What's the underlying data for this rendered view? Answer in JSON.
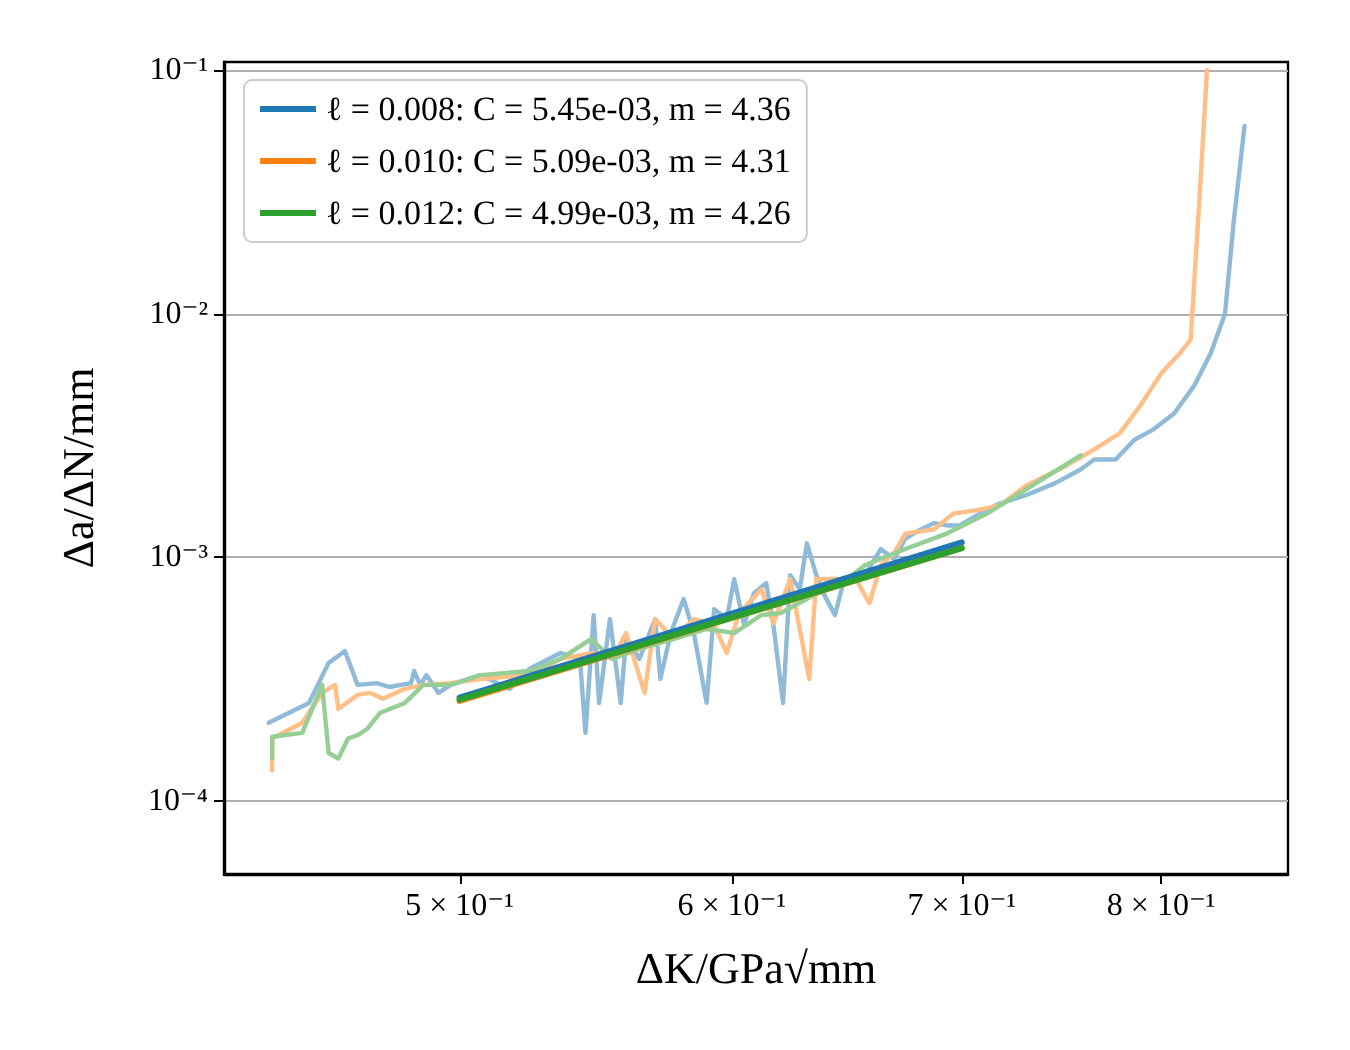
{
  "chart_data": {
    "type": "line",
    "xlabel": "ΔK/GPa√mm",
    "ylabel": "Δa/ΔN/mm",
    "log": "xy",
    "grid": "y",
    "legend": "top left",
    "marker": "none",
    "line_style": "solid",
    "xlim": [
      0.427,
      0.871
    ],
    "ylim": [
      5e-05,
      0.108
    ],
    "xticks": [
      {
        "value": 0.5,
        "label": "5 × 10⁻¹"
      },
      {
        "value": 0.6,
        "label": "6 × 10⁻¹"
      },
      {
        "value": 0.7,
        "label": "7 × 10⁻¹"
      },
      {
        "value": 0.8,
        "label": "8 × 10⁻¹"
      }
    ],
    "yticks": [
      {
        "value": 0.0001,
        "label": "10⁻⁴"
      },
      {
        "value": 0.001,
        "label": "10⁻³"
      },
      {
        "value": 0.01,
        "label": "10⁻²"
      },
      {
        "value": 0.1,
        "label": "10⁻¹"
      }
    ],
    "series": [
      {
        "color": "#8fbbd9",
        "x": [
          0.44,
          0.452,
          0.458,
          0.463,
          0.467,
          0.473,
          0.477,
          0.484,
          0.485,
          0.487,
          0.489,
          0.493,
          0.497,
          0.507,
          0.517,
          0.524,
          0.535,
          0.542,
          0.544,
          0.547,
          0.549,
          0.553,
          0.557,
          0.559,
          0.564,
          0.57,
          0.572,
          0.576,
          0.581,
          0.585,
          0.59,
          0.593,
          0.598,
          0.601,
          0.605,
          0.609,
          0.614,
          0.617,
          0.621,
          0.624,
          0.628,
          0.631,
          0.635,
          0.638,
          0.643,
          0.647,
          0.651,
          0.656,
          0.663,
          0.669,
          0.674,
          0.681,
          0.687,
          0.693,
          0.699,
          0.712,
          0.718,
          0.731,
          0.745,
          0.758,
          0.765,
          0.776,
          0.786,
          0.796,
          0.807,
          0.818,
          0.827,
          0.835,
          0.84,
          0.846
        ],
        "values": [
          0.000209,
          0.000252,
          0.000368,
          0.000412,
          0.000299,
          0.000304,
          0.000293,
          0.000304,
          0.000341,
          0.000299,
          0.000328,
          0.000277,
          0.000299,
          0.000328,
          0.000288,
          0.000348,
          0.000404,
          0.000382,
          0.00019,
          0.000578,
          0.000252,
          0.000557,
          0.000252,
          0.000461,
          0.000382,
          0.000557,
          0.000316,
          0.000488,
          0.000673,
          0.000488,
          0.000252,
          0.000612,
          0.000557,
          0.000813,
          0.000526,
          0.000712,
          0.000782,
          0.000526,
          0.000252,
          0.000844,
          0.000739,
          0.00114,
          0.000844,
          0.000712,
          0.000578,
          0.000813,
          0.000844,
          0.000844,
          0.00108,
          0.00098,
          0.00119,
          0.0013,
          0.00138,
          0.00135,
          0.00135,
          0.00157,
          0.00166,
          0.0018,
          0.00201,
          0.00229,
          0.00252,
          0.00252,
          0.00304,
          0.00335,
          0.00389,
          0.00507,
          0.00686,
          0.01,
          0.0243,
          0.059
        ]
      },
      {
        "color": "#ffbf86",
        "x": [
          0.441,
          0.441,
          0.45,
          0.456,
          0.46,
          0.461,
          0.467,
          0.471,
          0.475,
          0.482,
          0.488,
          0.497,
          0.507,
          0.524,
          0.535,
          0.547,
          0.554,
          0.559,
          0.566,
          0.57,
          0.577,
          0.585,
          0.593,
          0.598,
          0.603,
          0.612,
          0.617,
          0.624,
          0.632,
          0.635,
          0.645,
          0.652,
          0.658,
          0.663,
          0.669,
          0.674,
          0.687,
          0.696,
          0.709,
          0.718,
          0.731,
          0.751,
          0.765,
          0.778,
          0.789,
          0.8,
          0.81,
          0.816,
          0.821,
          0.825
        ],
        "values": [
          0.000133,
          0.00018,
          0.000209,
          0.000277,
          0.000299,
          0.000238,
          0.000272,
          0.000277,
          0.000262,
          0.000288,
          0.000299,
          0.000304,
          0.000316,
          0.000328,
          0.000382,
          0.000404,
          0.000382,
          0.000488,
          0.000277,
          0.000557,
          0.000461,
          0.000557,
          0.000526,
          0.000404,
          0.000589,
          0.000739,
          0.000536,
          0.000813,
          0.000316,
          0.000813,
          0.000813,
          0.000813,
          0.000648,
          0.000927,
          0.00104,
          0.00125,
          0.0013,
          0.00151,
          0.00157,
          0.00163,
          0.00197,
          0.00238,
          0.00277,
          0.00322,
          0.0042,
          0.00568,
          0.00686,
          0.00782,
          0.031,
          0.1
        ]
      },
      {
        "color": "#95cf95",
        "x": [
          0.441,
          0.441,
          0.45,
          0.456,
          0.458,
          0.461,
          0.464,
          0.467,
          0.47,
          0.474,
          0.482,
          0.488,
          0.497,
          0.507,
          0.524,
          0.535,
          0.546,
          0.554,
          0.564,
          0.577,
          0.59,
          0.601,
          0.612,
          0.62,
          0.634,
          0.645,
          0.656,
          0.674,
          0.693,
          0.712,
          0.758
        ],
        "values": [
          0.000149,
          0.000183,
          0.00019,
          0.000299,
          0.000157,
          0.000149,
          0.00018,
          0.000186,
          0.000197,
          0.000229,
          0.000252,
          0.000299,
          0.000299,
          0.000328,
          0.000341,
          0.000382,
          0.000461,
          0.000382,
          0.00042,
          0.000461,
          0.000507,
          0.000488,
          0.000578,
          0.000589,
          0.000699,
          0.000768,
          0.000927,
          0.00108,
          0.00125,
          0.00151,
          0.00262
        ]
      },
      {
        "name": "ℓ = 0.008: C = 5.45e-03, m = 4.36",
        "color": "#1f77b4",
        "x": [
          0.5,
          0.7
        ],
        "values": [
          0.000265,
          0.00115
        ]
      },
      {
        "name": "ℓ = 0.010: C = 5.09e-03, m = 4.31",
        "color": "#ff7f0e",
        "x": [
          0.5,
          0.7
        ],
        "values": [
          0.000257,
          0.00109
        ]
      },
      {
        "name": "ℓ = 0.012: C = 4.99e-03, m = 4.26",
        "color": "#2ca02c",
        "x": [
          0.5,
          0.7
        ],
        "values": [
          0.00026,
          0.00109
        ]
      }
    ]
  }
}
